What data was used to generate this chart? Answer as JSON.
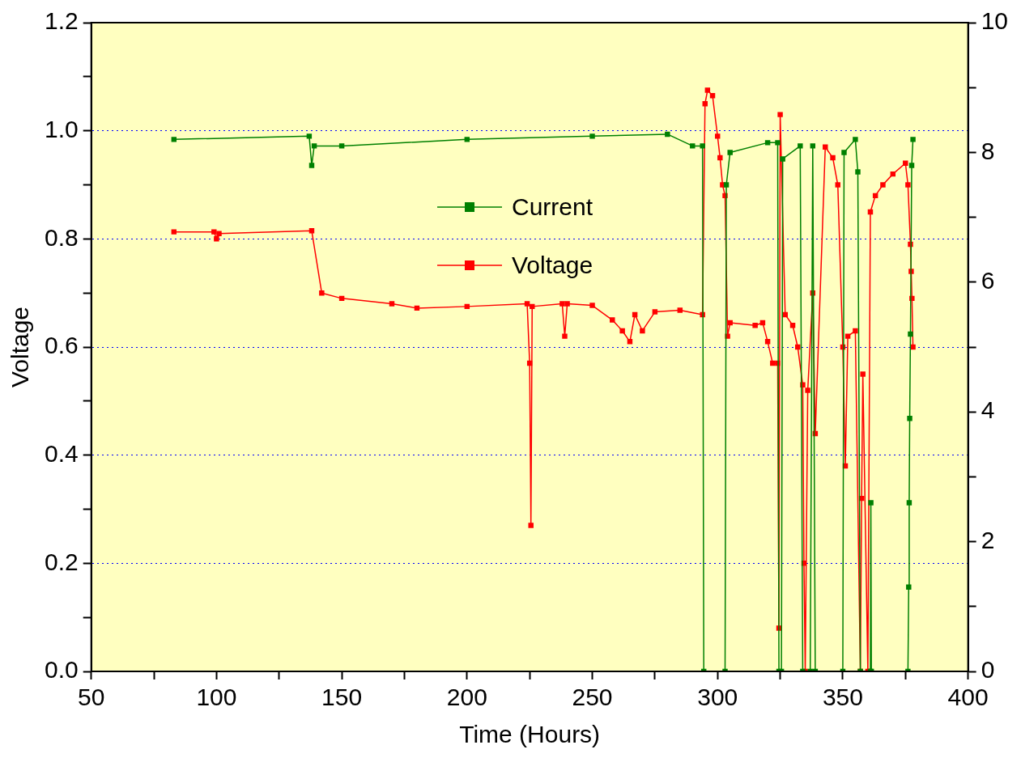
{
  "chart_data": {
    "type": "line",
    "xlabel": "Time (Hours)",
    "ylabel": "Voltage",
    "legend": "top",
    "grid": "y",
    "marker": "square",
    "line_style": "solid",
    "xlim": [
      50,
      400
    ],
    "xticks": [
      50,
      {
        "value": 75,
        "label": null
      },
      100,
      {
        "value": 125,
        "label": null
      },
      150,
      {
        "value": 175,
        "label": null
      },
      200,
      {
        "value": 225,
        "label": null
      },
      250,
      {
        "value": 275,
        "label": null
      },
      300,
      {
        "value": 325,
        "label": null
      },
      350,
      {
        "value": 375,
        "label": null
      },
      400
    ],
    "ylim": [
      0,
      1.2
    ],
    "yticks": [
      {
        "value": 0,
        "label": "0.0"
      },
      {
        "value": 0.1,
        "label": null
      },
      0.2,
      {
        "value": 0.3,
        "label": null
      },
      0.4,
      {
        "value": 0.5,
        "label": null
      },
      0.6,
      {
        "value": 0.7,
        "label": null
      },
      0.8,
      {
        "value": 0.9,
        "label": null
      },
      {
        "value": 1,
        "label": "1.0"
      },
      {
        "value": 1.1,
        "label": null
      },
      1.2
    ],
    "y2lim": [
      0,
      10
    ],
    "y2ticks": [
      0,
      {
        "value": 1,
        "label": null
      },
      2,
      {
        "value": 3,
        "label": null
      },
      4,
      {
        "value": 5,
        "label": null
      },
      6,
      {
        "value": 7,
        "label": null
      },
      8,
      {
        "value": 9,
        "label": null
      },
      10
    ],
    "series": [
      {
        "name": "Current",
        "color": "#008000",
        "axis": "y2",
        "x": [
          83,
          137,
          138,
          139,
          150,
          200,
          250,
          280,
          290,
          294,
          294.5,
          303,
          303.5,
          305,
          320,
          324,
          324.5,
          325.5,
          326,
          333,
          334,
          337,
          338,
          339,
          350,
          350.5,
          355,
          356,
          357,
          361,
          361.2,
          361.4,
          376,
          376.3,
          376.5,
          376.7,
          377,
          377.5,
          378
        ],
        "values": [
          8.2,
          8.25,
          7.8,
          8.1,
          8.1,
          8.2,
          8.25,
          8.28,
          8.1,
          8.1,
          0,
          0,
          7.5,
          8.0,
          8.15,
          8.15,
          0,
          0,
          7.9,
          8.1,
          0,
          0,
          8.1,
          0,
          0,
          8.0,
          8.2,
          7.7,
          0,
          0,
          2.6,
          0,
          0,
          1.3,
          2.6,
          3.9,
          5.2,
          7.8,
          8.2
        ]
      },
      {
        "name": "Voltage",
        "color": "#ff0000",
        "x": [
          83,
          99,
          100,
          101,
          138,
          142,
          150,
          170,
          180,
          200,
          224,
          225,
          225.5,
          226,
          238,
          239,
          240,
          250,
          258,
          262,
          265,
          267,
          270,
          275,
          285,
          294,
          295,
          296,
          298,
          300,
          301,
          302,
          303,
          304,
          305,
          315,
          318,
          320,
          322,
          324,
          324.5,
          325,
          327,
          330,
          332,
          334,
          334.5,
          335,
          336,
          338,
          339,
          343,
          346,
          348,
          350,
          351,
          352,
          355,
          357,
          357.5,
          358,
          360,
          361,
          363,
          366,
          370,
          375,
          376,
          377,
          377.3,
          377.6,
          378
        ],
        "values": [
          0.813,
          0.813,
          0.8,
          0.81,
          0.815,
          0.7,
          0.69,
          0.68,
          0.672,
          0.675,
          0.68,
          0.57,
          0.27,
          0.675,
          0.68,
          0.62,
          0.68,
          0.677,
          0.65,
          0.63,
          0.61,
          0.66,
          0.63,
          0.665,
          0.668,
          0.66,
          1.05,
          1.075,
          1.065,
          0.99,
          0.95,
          0.9,
          0.88,
          0.62,
          0.645,
          0.64,
          0.645,
          0.61,
          0.57,
          0.57,
          0.08,
          1.03,
          0.66,
          0.64,
          0.6,
          0.53,
          0.2,
          0.0,
          0.52,
          0.7,
          0.44,
          0.97,
          0.95,
          0.9,
          0.6,
          0.38,
          0.62,
          0.63,
          0.0,
          0.32,
          0.55,
          0.0,
          0.85,
          0.88,
          0.9,
          0.92,
          0.94,
          0.9,
          0.79,
          0.74,
          0.69,
          0.6
        ]
      }
    ]
  }
}
